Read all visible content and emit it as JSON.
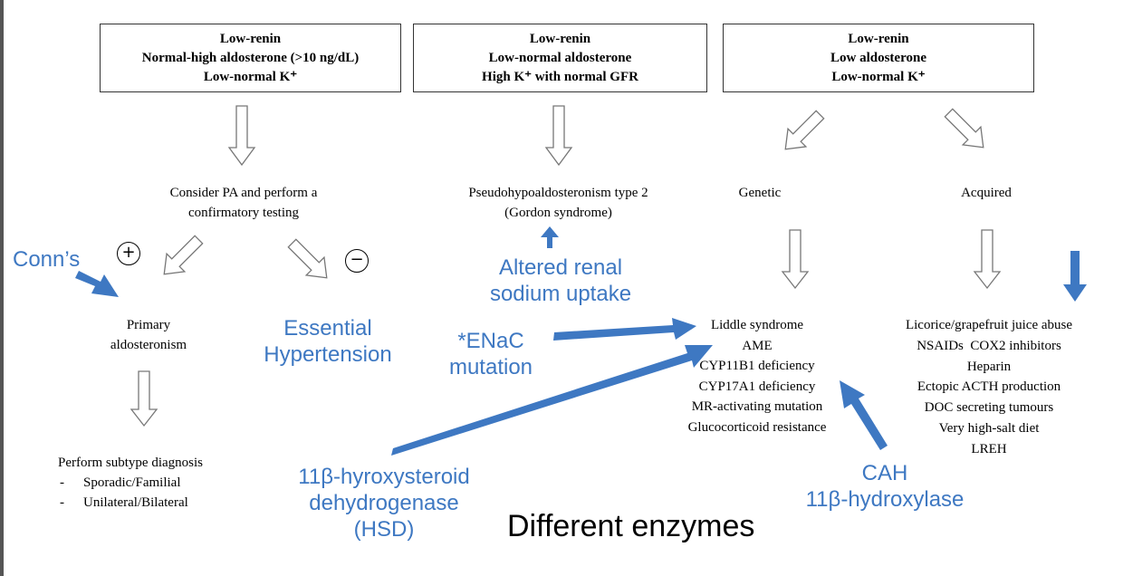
{
  "boxes": [
    {
      "lines": [
        "Low-renin",
        "Normal-high aldosterone (>10 ng/dL)",
        "Low-normal K⁺"
      ]
    },
    {
      "lines": [
        "Low-renin",
        "Low-normal aldosterone",
        "High K⁺ with normal GFR"
      ]
    },
    {
      "lines": [
        "Low-renin",
        "Low aldosterone",
        "Low-normal K⁺"
      ]
    }
  ],
  "branch1": {
    "consider": [
      "Consider PA and perform a",
      "confirmatory testing"
    ],
    "positive_sign": "+",
    "negative_sign": "−",
    "primary": [
      "Primary",
      "aldosteronism"
    ],
    "subtype_title": "Perform subtype diagnosis",
    "subtype_items": [
      "Sporadic/Familial",
      "Unilateral/Bilateral"
    ]
  },
  "branch2": {
    "pseudo": [
      "Pseudohypoaldosteronism type 2",
      "(Gordon syndrome)"
    ]
  },
  "branch3": {
    "genetic": "Genetic",
    "acquired": "Acquired",
    "genetic_list": [
      "Liddle syndrome",
      "AME",
      "CYP11B1 deficiency",
      "CYP17A1 deficiency",
      "MR-activating mutation",
      "Glucocorticoid resistance"
    ],
    "acquired_list": [
      "Licorice/grapefruit juice abuse",
      "NSAIDs  COX2 inhibitors",
      "Heparin",
      "Ectopic ACTH production",
      "DOC secreting tumours",
      "Very high-salt diet",
      "LREH"
    ]
  },
  "annotations": {
    "conns": "Conn’s",
    "essential": [
      "Essential",
      "Hypertension"
    ],
    "altered": [
      "Altered renal",
      "sodium uptake"
    ],
    "enac": [
      "*ENaC",
      "mutation"
    ],
    "hsd": [
      "11β-hyroxysteroid",
      "dehydrogenase",
      "(HSD)"
    ],
    "cah": [
      "CAH",
      "11β-hydroxylase"
    ],
    "different": "Different enzymes"
  },
  "colors": {
    "annotation_blue": "#3e78c2",
    "outline_arrow": "#777777"
  }
}
